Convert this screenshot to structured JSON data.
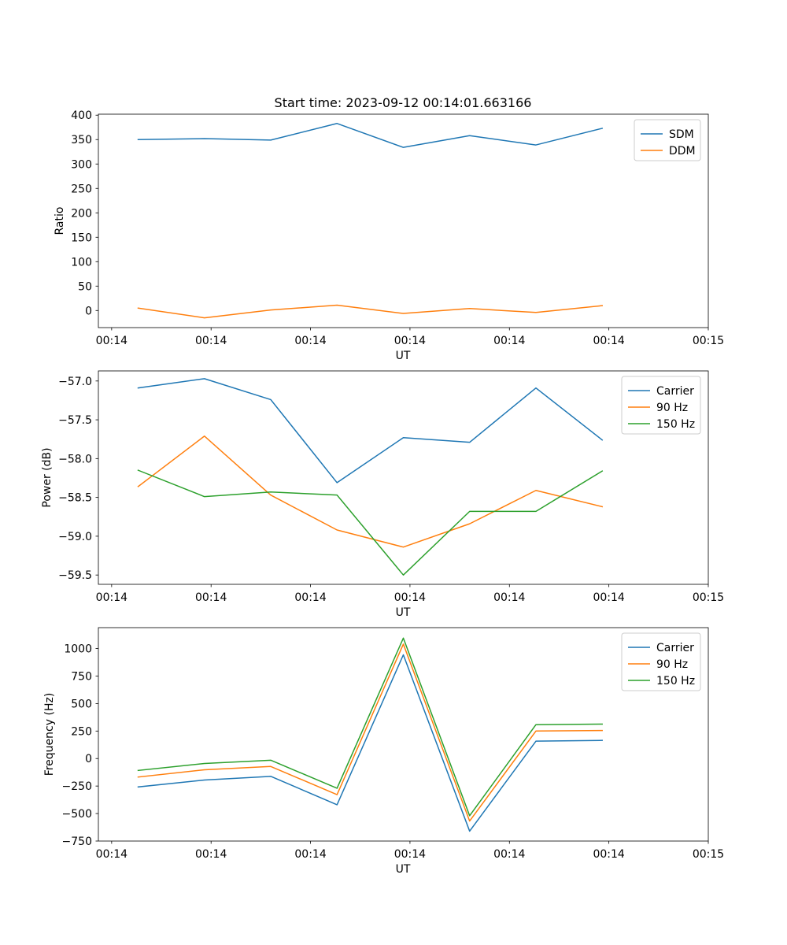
{
  "chart_data": [
    {
      "type": "line",
      "title": "Start time: 2023-09-12 00:14:01.663166",
      "xlabel": "UT",
      "ylabel": "Ratio",
      "xlim": [
        -0.6,
        8.6
      ],
      "ylim": [
        -35,
        402
      ],
      "x": [
        0,
        1,
        2,
        3,
        4,
        5,
        6,
        7
      ],
      "x_ticks": [
        -0.4,
        1.1,
        2.6,
        4.1,
        5.6,
        7.1,
        8.6
      ],
      "x_tick_labels": [
        "00:14",
        "00:14",
        "00:14",
        "00:14",
        "00:14",
        "00:14",
        "00:15"
      ],
      "y_ticks": [
        0,
        50,
        100,
        150,
        200,
        250,
        300,
        350,
        400
      ],
      "y_tick_labels": [
        "0",
        "50",
        "100",
        "150",
        "200",
        "250",
        "300",
        "350",
        "400"
      ],
      "legend": "top-right",
      "series": [
        {
          "name": "SDM",
          "color": "#1f77b4",
          "values": [
            350,
            352,
            349,
            383,
            334,
            358,
            339,
            373
          ]
        },
        {
          "name": "DDM",
          "color": "#ff7f0e",
          "values": [
            5,
            -15,
            1,
            11,
            -6,
            4,
            -4,
            10
          ]
        }
      ]
    },
    {
      "type": "line",
      "title": "",
      "xlabel": "UT",
      "ylabel": "Power (dB)",
      "xlim": [
        -0.6,
        8.6
      ],
      "ylim": [
        -59.62,
        -56.87
      ],
      "x": [
        0,
        1,
        2,
        3,
        4,
        5,
        6,
        7
      ],
      "x_ticks": [
        -0.4,
        1.1,
        2.6,
        4.1,
        5.6,
        7.1,
        8.6
      ],
      "x_tick_labels": [
        "00:14",
        "00:14",
        "00:14",
        "00:14",
        "00:14",
        "00:14",
        "00:15"
      ],
      "y_ticks": [
        -59.5,
        -59.0,
        -58.5,
        -58.0,
        -57.5,
        -57.0
      ],
      "y_tick_labels": [
        "−59.5",
        "−59.0",
        "−58.5",
        "−58.0",
        "−57.5",
        "−57.0"
      ],
      "legend": "top-right",
      "series": [
        {
          "name": "Carrier",
          "color": "#1f77b4",
          "values": [
            -57.09,
            -56.97,
            -57.24,
            -58.31,
            -57.73,
            -57.79,
            -57.09,
            -57.76
          ]
        },
        {
          "name": "90 Hz",
          "color": "#ff7f0e",
          "values": [
            -58.36,
            -57.71,
            -58.47,
            -58.92,
            -59.14,
            -58.84,
            -58.41,
            -58.62
          ]
        },
        {
          "name": "150 Hz",
          "color": "#2ca02c",
          "values": [
            -58.15,
            -58.49,
            -58.43,
            -58.47,
            -59.5,
            -58.68,
            -58.68,
            -58.16
          ]
        }
      ]
    },
    {
      "type": "line",
      "title": "",
      "xlabel": "UT",
      "ylabel": "Frequency (Hz)",
      "xlim": [
        -0.6,
        8.6
      ],
      "ylim": [
        -750,
        1190
      ],
      "x": [
        0,
        1,
        2,
        3,
        4,
        5,
        6,
        7
      ],
      "x_ticks": [
        -0.4,
        1.1,
        2.6,
        4.1,
        5.6,
        7.1,
        8.6
      ],
      "x_tick_labels": [
        "00:14",
        "00:14",
        "00:14",
        "00:14",
        "00:14",
        "00:14",
        "00:15"
      ],
      "y_ticks": [
        -750,
        -500,
        -250,
        0,
        250,
        500,
        750,
        1000
      ],
      "y_tick_labels": [
        "−750",
        "−500",
        "−250",
        "0",
        "250",
        "500",
        "750",
        "1000"
      ],
      "legend": "top-right",
      "series": [
        {
          "name": "Carrier",
          "color": "#1f77b4",
          "values": [
            -258,
            -195,
            -162,
            -420,
            943,
            -660,
            158,
            165
          ]
        },
        {
          "name": "90 Hz",
          "color": "#ff7f0e",
          "values": [
            -168,
            -102,
            -72,
            -328,
            1040,
            -568,
            250,
            255
          ]
        },
        {
          "name": "150 Hz",
          "color": "#2ca02c",
          "values": [
            -108,
            -45,
            -15,
            -270,
            1095,
            -520,
            308,
            313
          ]
        }
      ]
    }
  ]
}
